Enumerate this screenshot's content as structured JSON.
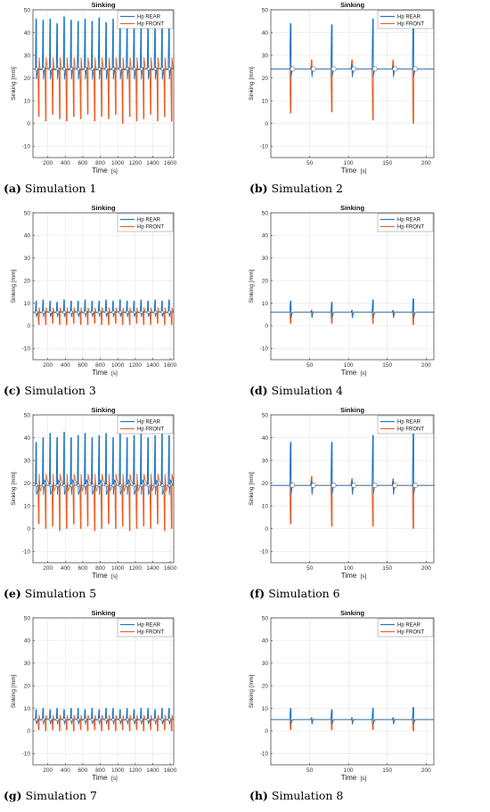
{
  "colors": {
    "rear": "#1f77c4",
    "front": "#e8622a",
    "grid": "#e6e6e6",
    "axis": "#333333"
  },
  "chart_data": [
    {
      "id": "a",
      "type": "line",
      "title": "Sinking",
      "xlabel": "Time",
      "xunit": "[s]",
      "ylabel": "Sinking [mm]",
      "xlim": [
        30,
        1640
      ],
      "ylim": [
        -15,
        50
      ],
      "xticks": [
        200,
        400,
        600,
        800,
        1000,
        1200,
        1400,
        1600
      ],
      "yticks": [
        -10,
        0,
        10,
        20,
        30,
        40,
        50
      ],
      "grid": true,
      "legend_position": "top-right",
      "caption_letter": "(a)",
      "caption_text": " Simulation 1",
      "baseline": 24,
      "wobble": 0.6,
      "markers": true,
      "series": [
        {
          "name": "Hp REAR",
          "spike_x": [
            70,
            150,
            230,
            310,
            390,
            470,
            550,
            630,
            710,
            790,
            870,
            950,
            1030,
            1110,
            1190,
            1270,
            1350,
            1430,
            1510,
            1590
          ],
          "spike_peak": [
            46,
            45.5,
            46,
            44,
            47,
            45.5,
            45,
            46,
            45,
            46.5,
            44.5,
            46,
            47,
            45,
            46,
            44.5,
            46,
            47,
            45,
            46.5
          ],
          "dip": 19.5
        },
        {
          "name": "Hp FRONT",
          "spike_x": [
            100,
            180,
            260,
            340,
            420,
            500,
            580,
            660,
            740,
            820,
            900,
            980,
            1060,
            1140,
            1220,
            1300,
            1380,
            1460,
            1540,
            1620
          ],
          "spike_peak": [
            3,
            1,
            4,
            2,
            1,
            3,
            2,
            4,
            1,
            3,
            2,
            4,
            0,
            3,
            1,
            2,
            4,
            1,
            3,
            1
          ],
          "dip": 29
        }
      ]
    },
    {
      "id": "b",
      "type": "line",
      "title": "Sinking",
      "xlabel": "Time",
      "xunit": "[s]",
      "ylabel": "Sinking [mm]",
      "xlim": [
        0,
        210
      ],
      "ylim": [
        -15,
        50
      ],
      "xticks": [
        50,
        100,
        150,
        200
      ],
      "yticks": [
        -10,
        0,
        10,
        20,
        30,
        40,
        50
      ],
      "grid": true,
      "legend_position": "top-right",
      "caption_letter": "(b)",
      "caption_text": " Simulation 2",
      "baseline": 24,
      "wobble": 0.3,
      "markers": true,
      "series": [
        {
          "name": "Hp REAR",
          "spike_x": [
            26,
            53,
            79,
            105,
            132,
            158,
            184
          ],
          "spike_peak": [
            44,
            25,
            43.5,
            26,
            46,
            25,
            47
          ],
          "dip": 20.5
        },
        {
          "name": "Hp FRONT",
          "spike_x": [
            26,
            53,
            79,
            105,
            132,
            158,
            184
          ],
          "spike_peak": [
            4.5,
            28,
            5,
            28,
            1.5,
            28,
            0
          ],
          "dip": 22
        }
      ]
    },
    {
      "id": "c",
      "type": "line",
      "title": "Sinking",
      "xlabel": "Time",
      "xunit": "[s]",
      "ylabel": "Sinking [mm]",
      "xlim": [
        30,
        1640
      ],
      "ylim": [
        -15,
        50
      ],
      "xticks": [
        200,
        400,
        600,
        800,
        1000,
        1200,
        1400,
        1600
      ],
      "yticks": [
        -10,
        0,
        10,
        20,
        30,
        40,
        50
      ],
      "grid": true,
      "legend_position": "top-right",
      "caption_letter": "(c)",
      "caption_text": " Simulation 3",
      "baseline": 6,
      "wobble": 0.3,
      "markers": true,
      "series": [
        {
          "name": "Hp REAR",
          "spike_x": [
            70,
            150,
            230,
            310,
            390,
            470,
            550,
            630,
            710,
            790,
            870,
            950,
            1030,
            1110,
            1190,
            1270,
            1350,
            1430,
            1510,
            1590
          ],
          "spike_peak": [
            11,
            11.5,
            11,
            10.5,
            11.5,
            11,
            11,
            11.5,
            11,
            11,
            11.5,
            11,
            11.5,
            11,
            11,
            11.5,
            11,
            11.5,
            11,
            11.5
          ],
          "dip": 4
        },
        {
          "name": "Hp FRONT",
          "spike_x": [
            100,
            180,
            260,
            340,
            420,
            500,
            580,
            660,
            740,
            820,
            900,
            980,
            1060,
            1140,
            1220,
            1300,
            1380,
            1460,
            1540,
            1620
          ],
          "spike_peak": [
            0.5,
            0.5,
            1,
            0.5,
            0.5,
            1,
            0.5,
            0.5,
            1,
            0.5,
            0.5,
            1,
            0.5,
            0.5,
            1,
            0.5,
            0.5,
            1,
            0.5,
            0.5
          ],
          "dip": 8
        }
      ]
    },
    {
      "id": "d",
      "type": "line",
      "title": "Sinking",
      "xlabel": "Time",
      "xunit": "[s]",
      "ylabel": "Sinking [mm]",
      "xlim": [
        0,
        210
      ],
      "ylim": [
        -15,
        50
      ],
      "xticks": [
        50,
        100,
        150,
        200
      ],
      "yticks": [
        -10,
        0,
        10,
        20,
        30,
        40,
        50
      ],
      "grid": true,
      "legend_position": "top-right",
      "caption_letter": "(d)",
      "caption_text": " Simulation 4",
      "baseline": 6,
      "wobble": 0.1,
      "markers": false,
      "series": [
        {
          "name": "Hp REAR",
          "spike_x": [
            26,
            53,
            79,
            105,
            132,
            158,
            184
          ],
          "spike_peak": [
            11,
            6.5,
            10.5,
            6.5,
            11.5,
            6.5,
            12
          ],
          "dip": 3.5
        },
        {
          "name": "Hp FRONT",
          "spike_x": [
            26,
            53,
            79,
            105,
            132,
            158,
            184
          ],
          "spike_peak": [
            1,
            7,
            1,
            7,
            1,
            7,
            0.5
          ],
          "dip": 5
        }
      ]
    },
    {
      "id": "e",
      "type": "line",
      "title": "Sinking",
      "xlabel": "Time",
      "xunit": "[s]",
      "ylabel": "Sinking [mm]",
      "xlim": [
        30,
        1640
      ],
      "ylim": [
        -15,
        50
      ],
      "xticks": [
        200,
        400,
        600,
        800,
        1000,
        1200,
        1400,
        1600
      ],
      "yticks": [
        -10,
        0,
        10,
        20,
        30,
        40,
        50
      ],
      "grid": true,
      "legend_position": "top-right",
      "caption_letter": "(e)",
      "caption_text": " Simulation 5",
      "baseline": 19,
      "wobble": 2.5,
      "markers": true,
      "series": [
        {
          "name": "Hp REAR",
          "spike_x": [
            70,
            150,
            230,
            310,
            390,
            470,
            550,
            630,
            710,
            790,
            870,
            950,
            1030,
            1110,
            1190,
            1270,
            1350,
            1430,
            1510,
            1590
          ],
          "spike_peak": [
            38,
            40,
            42,
            40,
            42.5,
            40,
            41,
            42,
            40,
            41,
            42,
            40,
            42,
            40,
            41,
            42,
            40,
            41,
            42,
            41
          ],
          "dip": 15
        },
        {
          "name": "Hp FRONT",
          "spike_x": [
            100,
            180,
            260,
            340,
            420,
            500,
            580,
            660,
            740,
            820,
            900,
            980,
            1060,
            1140,
            1220,
            1300,
            1380,
            1460,
            1540,
            1620
          ],
          "spike_peak": [
            2,
            0,
            1,
            -1,
            0,
            2,
            0,
            1,
            -1,
            0,
            2,
            0,
            1,
            -1,
            0,
            1,
            0,
            2,
            -1,
            0
          ],
          "dip": 24
        }
      ]
    },
    {
      "id": "f",
      "type": "line",
      "title": "Sinking",
      "xlabel": "Time",
      "xunit": "[s]",
      "ylabel": "Sinking [mm]",
      "xlim": [
        0,
        210
      ],
      "ylim": [
        -15,
        50
      ],
      "xticks": [
        50,
        100,
        150,
        200
      ],
      "yticks": [
        -10,
        0,
        10,
        20,
        30,
        40,
        50
      ],
      "grid": true,
      "legend_position": "top-right",
      "caption_letter": "(f)",
      "caption_text": " Simulation 6",
      "baseline": 19,
      "wobble": 0.3,
      "markers": true,
      "series": [
        {
          "name": "Hp REAR",
          "spike_x": [
            26,
            53,
            79,
            105,
            132,
            158,
            184
          ],
          "spike_peak": [
            38,
            21,
            38,
            21,
            41,
            21,
            42.5
          ],
          "dip": 15
        },
        {
          "name": "Hp FRONT",
          "spike_x": [
            26,
            53,
            79,
            105,
            132,
            158,
            184
          ],
          "spike_peak": [
            2,
            23,
            1,
            22,
            1,
            22,
            0
          ],
          "dip": 17
        }
      ]
    },
    {
      "id": "g",
      "type": "line",
      "title": "Sinking",
      "xlabel": "Time",
      "xunit": "[s]",
      "ylabel": "Sinking [mm]",
      "xlim": [
        30,
        1640
      ],
      "ylim": [
        -15,
        50
      ],
      "xticks": [
        200,
        400,
        600,
        800,
        1000,
        1200,
        1400,
        1600
      ],
      "yticks": [
        -10,
        0,
        10,
        20,
        30,
        40,
        50
      ],
      "grid": true,
      "legend_position": "top-right",
      "caption_letter": "(g)",
      "caption_text": " Simulation 7",
      "baseline": 5,
      "wobble": 0.3,
      "markers": true,
      "series": [
        {
          "name": "Hp REAR",
          "spike_x": [
            70,
            150,
            230,
            310,
            390,
            470,
            550,
            630,
            710,
            790,
            870,
            950,
            1030,
            1110,
            1190,
            1270,
            1350,
            1430,
            1510,
            1590
          ],
          "spike_peak": [
            9.5,
            10,
            9.5,
            10,
            9.5,
            10,
            10,
            9.5,
            10,
            9.5,
            10,
            10,
            9.5,
            10,
            9.5,
            10,
            10,
            9.5,
            10,
            10
          ],
          "dip": 3
        },
        {
          "name": "Hp FRONT",
          "spike_x": [
            100,
            180,
            260,
            340,
            420,
            500,
            580,
            660,
            740,
            820,
            900,
            980,
            1060,
            1140,
            1220,
            1300,
            1380,
            1460,
            1540,
            1620
          ],
          "spike_peak": [
            0.5,
            0,
            0.5,
            0,
            0.5,
            0,
            0.5,
            0,
            0.5,
            0,
            0.5,
            0,
            0.5,
            0,
            0.5,
            0,
            0.5,
            0,
            0.5,
            0
          ],
          "dip": 7
        }
      ]
    },
    {
      "id": "h",
      "type": "line",
      "title": "Sinking",
      "xlabel": "Time",
      "xunit": "[s]",
      "ylabel": "Sinking [mm]",
      "xlim": [
        0,
        210
      ],
      "ylim": [
        -15,
        50
      ],
      "xticks": [
        50,
        100,
        150,
        200
      ],
      "yticks": [
        -10,
        0,
        10,
        20,
        30,
        40,
        50
      ],
      "grid": true,
      "legend_position": "top-right",
      "caption_letter": "(h)",
      "caption_text": " Simulation 8",
      "baseline": 5,
      "wobble": 0.1,
      "markers": false,
      "series": [
        {
          "name": "Hp REAR",
          "spike_x": [
            26,
            53,
            79,
            105,
            132,
            158,
            184
          ],
          "spike_peak": [
            10,
            5.5,
            9.5,
            5.5,
            10,
            5.5,
            10.5
          ],
          "dip": 3
        },
        {
          "name": "Hp FRONT",
          "spike_x": [
            26,
            53,
            79,
            105,
            132,
            158,
            184
          ],
          "spike_peak": [
            0.5,
            6,
            0.5,
            6,
            0.5,
            6,
            0
          ],
          "dip": 4
        }
      ]
    }
  ]
}
